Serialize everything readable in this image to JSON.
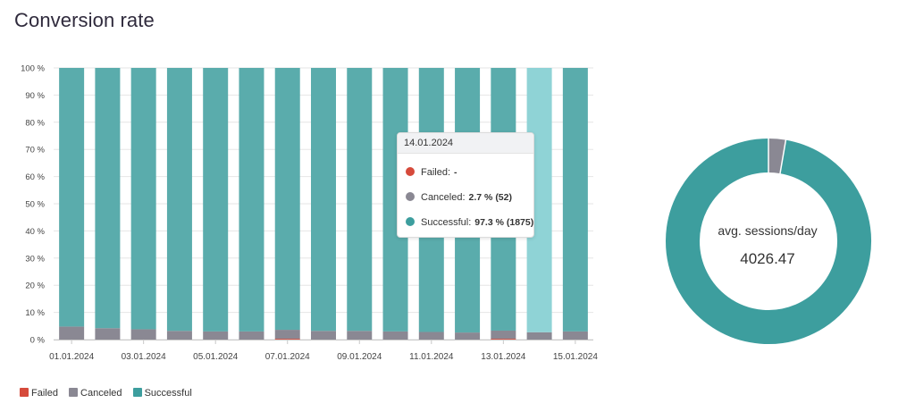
{
  "title": "Conversion rate",
  "colors": {
    "failed": "#d64a3b",
    "canceled": "#8a8893",
    "successful": "#5aacac",
    "successful_highlight": "#8fd3d6",
    "donut_successful": "#3d9e9e",
    "donut_canceled": "#8a8893"
  },
  "chart_data": [
    {
      "type": "bar",
      "stacked": true,
      "categories": [
        "01.01.2024",
        "02.01.2024",
        "03.01.2024",
        "04.01.2024",
        "05.01.2024",
        "06.01.2024",
        "07.01.2024",
        "08.01.2024",
        "09.01.2024",
        "10.01.2024",
        "11.01.2024",
        "12.01.2024",
        "13.01.2024",
        "14.01.2024",
        "15.01.2024"
      ],
      "xtick_labels": [
        "01.01.2024",
        "03.01.2024",
        "05.01.2024",
        "07.01.2024",
        "09.01.2024",
        "11.01.2024",
        "13.01.2024",
        "15.01.2024"
      ],
      "yticks": [
        "0 %",
        "10 %",
        "20 %",
        "30 %",
        "40 %",
        "50 %",
        "60 %",
        "70 %",
        "80 %",
        "90 %",
        "100 %"
      ],
      "ylim": [
        0,
        100
      ],
      "highlighted_category": "14.01.2024",
      "series": [
        {
          "name": "Failed",
          "color_key": "failed",
          "values": [
            0,
            0,
            0,
            0,
            0,
            0,
            0.3,
            0,
            0,
            0,
            0,
            0,
            0.3,
            0,
            0
          ]
        },
        {
          "name": "Canceled",
          "color_key": "canceled",
          "values": [
            4.8,
            4.2,
            3.8,
            3.2,
            3.0,
            3.0,
            3.3,
            3.2,
            3.2,
            3.0,
            2.8,
            2.6,
            3.0,
            2.7,
            3.0
          ]
        },
        {
          "name": "Successful",
          "color_key": "successful",
          "values": [
            95.2,
            95.8,
            96.2,
            96.8,
            97.0,
            97.0,
            96.4,
            96.8,
            96.8,
            97.0,
            97.2,
            97.4,
            96.7,
            97.3,
            97.0
          ]
        }
      ],
      "legend": [
        "Failed",
        "Canceled",
        "Successful"
      ],
      "legend_position": "bottom-left",
      "grid": true
    },
    {
      "type": "pie",
      "donut": true,
      "slices": [
        {
          "name": "Canceled",
          "value": 2.7
        },
        {
          "name": "Successful",
          "value": 97.3
        }
      ],
      "center_caption": "avg. sessions/day",
      "center_value": "4026.47"
    }
  ],
  "tooltip": {
    "date": "14.01.2024",
    "rows": [
      {
        "label": "Failed:",
        "value": "-",
        "color_key": "failed"
      },
      {
        "label": "Canceled:",
        "value": "2.7 % (52)",
        "color_key": "canceled"
      },
      {
        "label": "Successful:",
        "value": "97.3 % (1875)",
        "color_key": "successful"
      }
    ]
  }
}
